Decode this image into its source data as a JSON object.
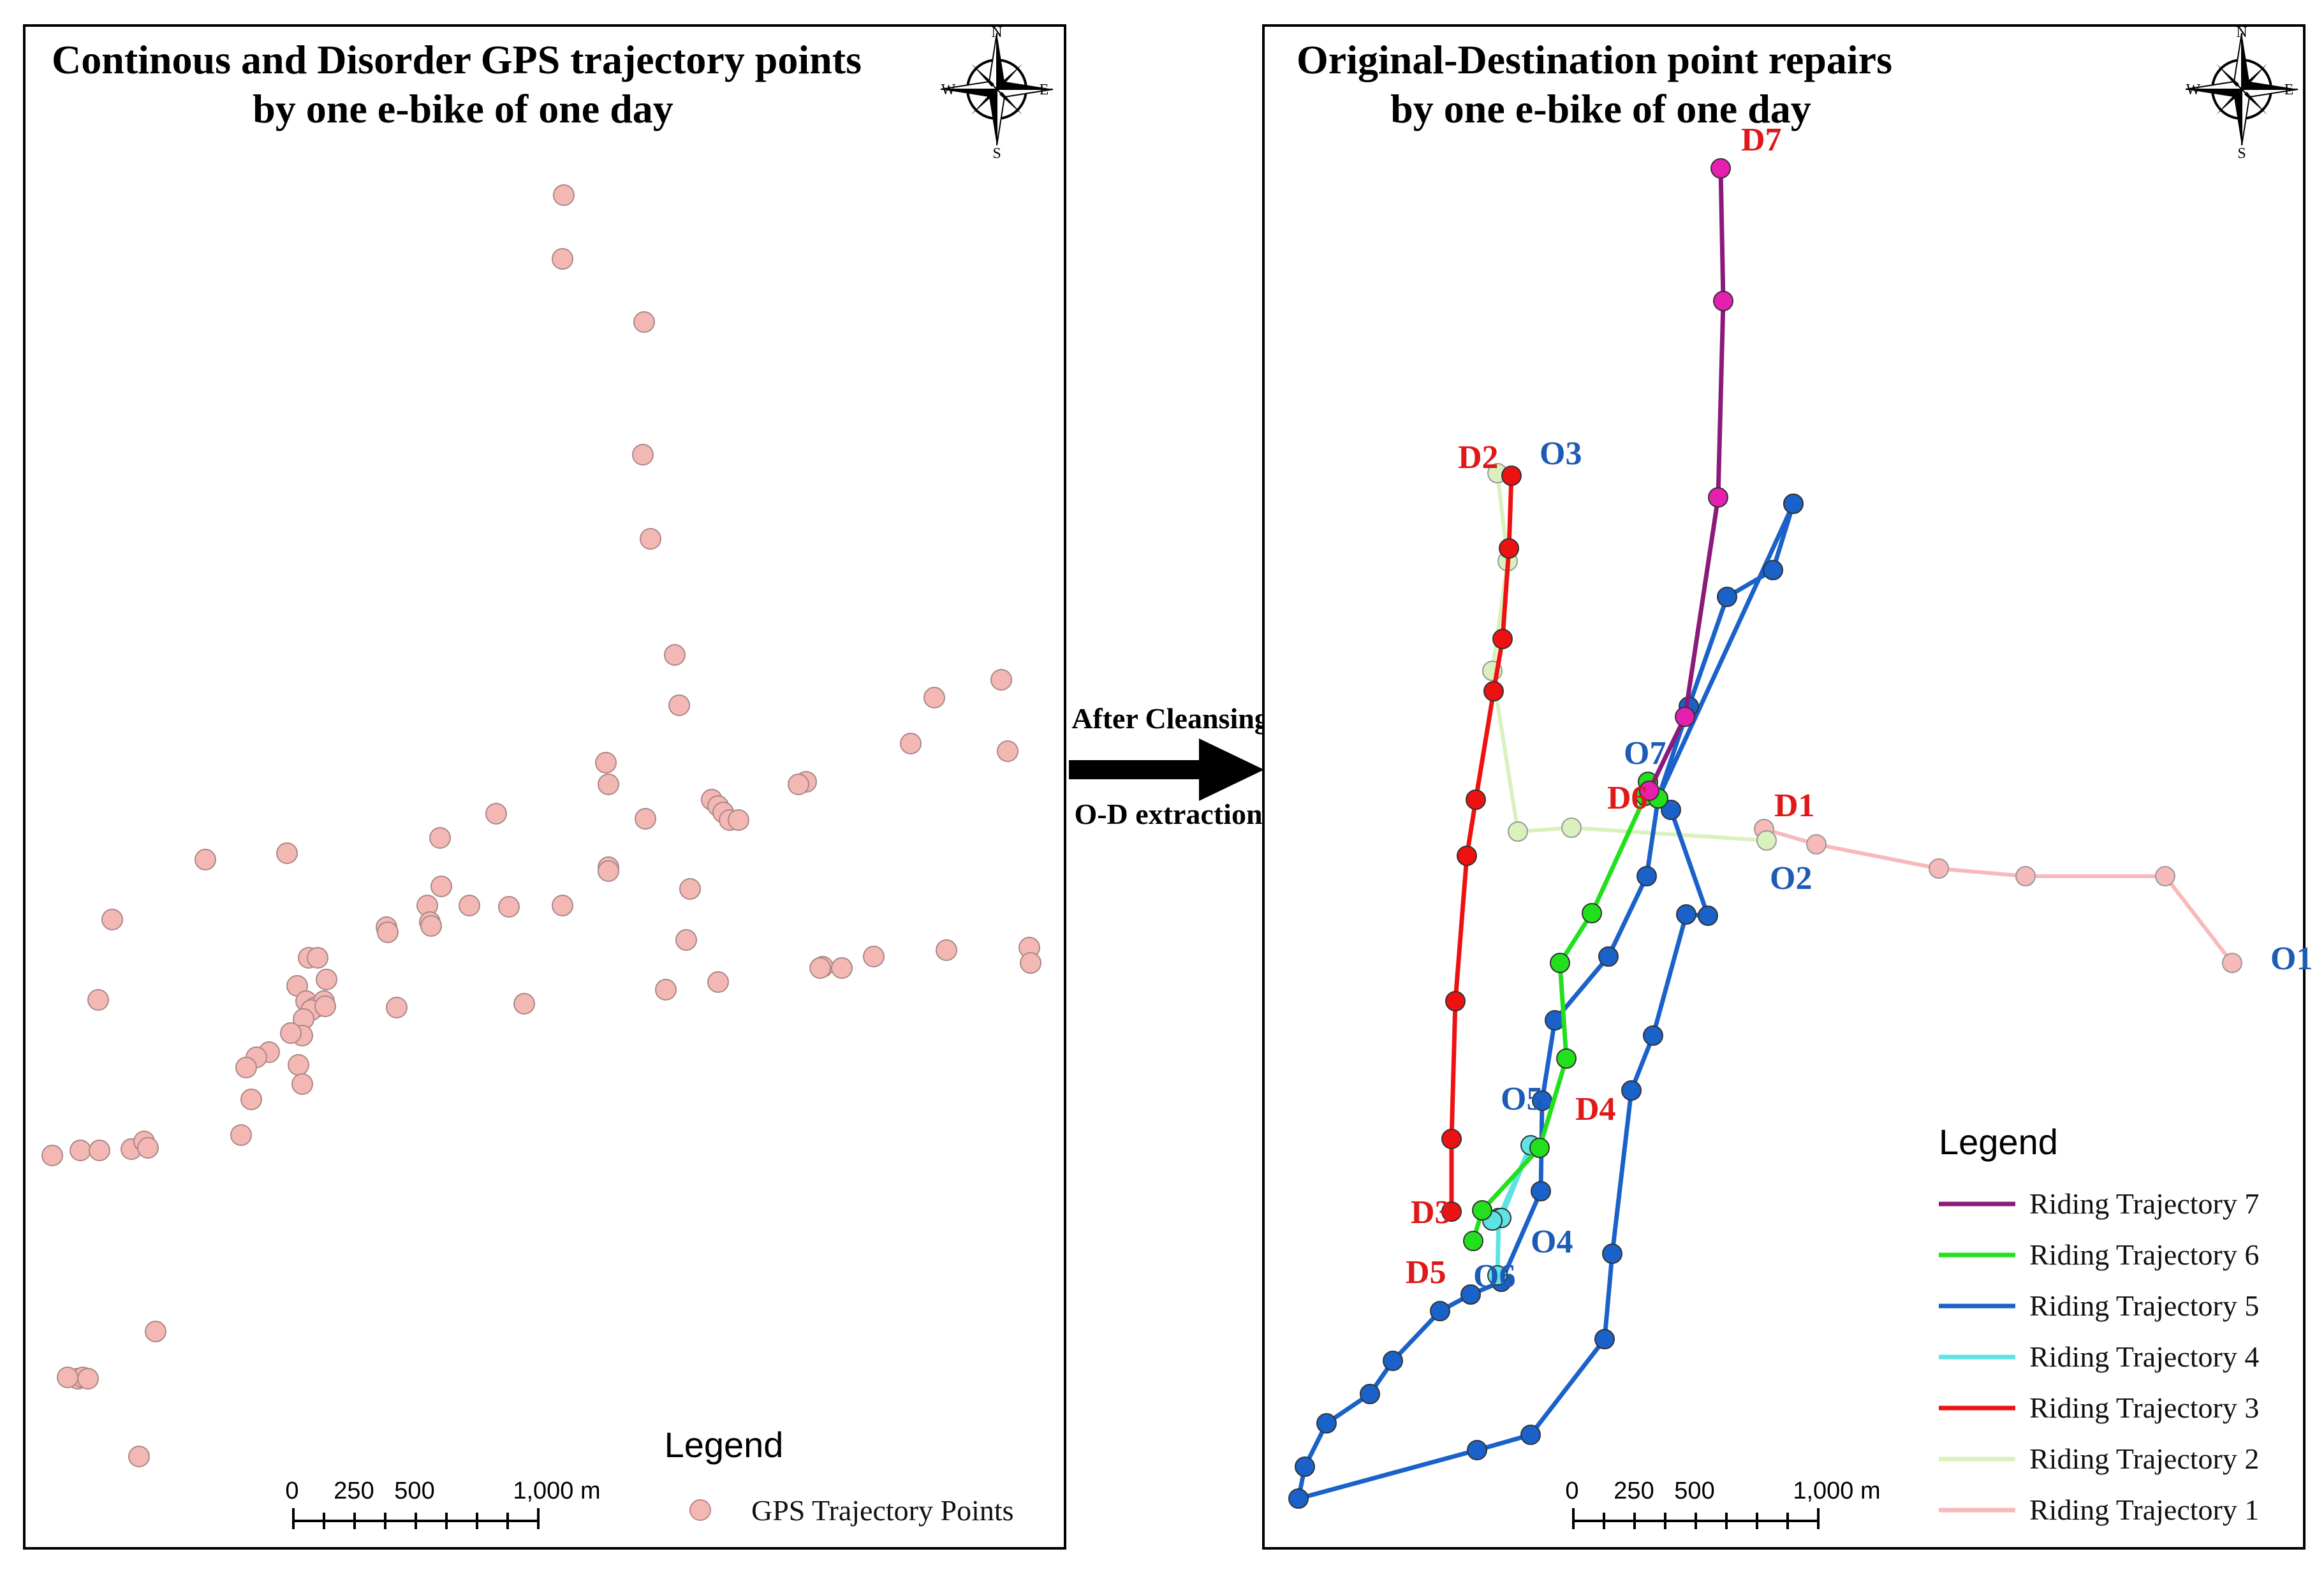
{
  "left_panel": {
    "title_line1": "Continous and Disorder GPS trajectory points",
    "title_line2": "by one e-bike of one day",
    "legend_title": "Legend",
    "legend_item": "GPS Trajectory Points",
    "point_color": "#f4b8b4",
    "scale_labels": [
      "0",
      "250",
      "500",
      "1,000 m"
    ]
  },
  "right_panel": {
    "title_line1": "Original-Destination point repairs",
    "title_line2": "by one e-bike of one day",
    "legend_title": "Legend",
    "scale_labels": [
      "0",
      "250",
      "500",
      "1,000 m"
    ],
    "trajectories": [
      {
        "id": 7,
        "label": "Riding Trajectory 7",
        "color": "#8b1a7a",
        "marker": "#e61fb0"
      },
      {
        "id": 6,
        "label": "Riding Trajectory 6",
        "color": "#22e01c",
        "marker": "#22e01c"
      },
      {
        "id": 5,
        "label": "Riding Trajectory 5",
        "color": "#1a62c9",
        "marker": "#1a62c9"
      },
      {
        "id": 4,
        "label": "Riding Trajectory 4",
        "color": "#5ee3e3",
        "marker": "#5ee3e3"
      },
      {
        "id": 3,
        "label": "Riding Trajectory 3",
        "color": "#ee1111",
        "marker": "#ee1111"
      },
      {
        "id": 2,
        "label": "Riding Trajectory 2",
        "color": "#d9f2bd",
        "marker": "#d9f2bd"
      },
      {
        "id": 1,
        "label": "Riding Trajectory 1",
        "color": "#f7b9b9",
        "marker": "#f7b9b9"
      }
    ],
    "od_labels": {
      "origins": [
        "O1",
        "O2",
        "O3",
        "O4",
        "O5",
        "O6",
        "O7"
      ],
      "destinations": [
        "D1",
        "D2",
        "D3",
        "D4",
        "D5",
        "D6",
        "D7"
      ],
      "origin_color": "#1d5bb5",
      "destination_color": "#e01818"
    }
  },
  "arrow": {
    "label_top": "After Cleansing",
    "label_bottom": "O-D extraction"
  },
  "compass": {
    "n": "N",
    "s": "S",
    "e": "E",
    "w": "W"
  }
}
